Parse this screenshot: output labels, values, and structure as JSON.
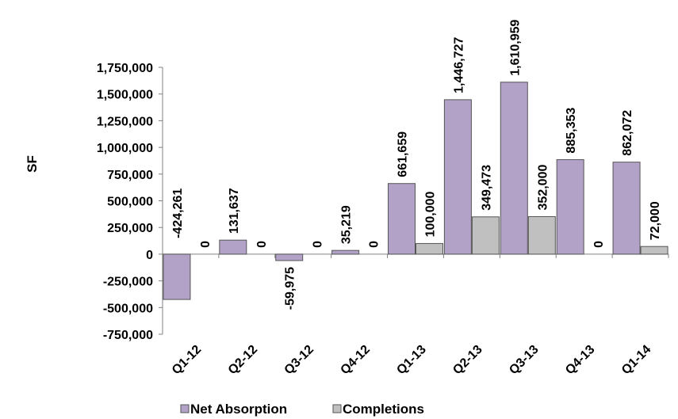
{
  "chart_data": {
    "type": "bar",
    "title": "",
    "xlabel": "",
    "ylabel": "SF",
    "categories": [
      "Q1-12",
      "Q2-12",
      "Q3-12",
      "Q4-12",
      "Q1-13",
      "Q2-13",
      "Q3-13",
      "Q4-13",
      "Q1-14"
    ],
    "series": [
      {
        "name": "Net Absorption",
        "color": "#b3a2c7",
        "values": [
          -424261,
          131637,
          -59975,
          35219,
          661659,
          1446727,
          1610959,
          885353,
          862072
        ],
        "labels": [
          "-424,261",
          "131,637",
          "-59,975",
          "35,219",
          "661,659",
          "1,446,727",
          "1,610,959",
          "885,353",
          "862,072"
        ]
      },
      {
        "name": "Completions",
        "color": "#c0c0c0",
        "values": [
          0,
          0,
          0,
          0,
          100000,
          349473,
          352000,
          0,
          72000
        ],
        "labels": [
          "0",
          "0",
          "0",
          "0",
          "100,000",
          "349,473",
          "352,000",
          "0",
          "72,000"
        ]
      }
    ],
    "ylim": [
      -750000,
      1750000
    ],
    "yticks": [
      1750000,
      1500000,
      1250000,
      1000000,
      750000,
      500000,
      250000,
      0,
      -250000,
      -500000,
      -750000
    ],
    "ytick_labels": [
      "1,750,000",
      "1,500,000",
      "1,250,000",
      "1,000,000",
      "750,000",
      "500,000",
      "250,000",
      "0",
      "-250,000",
      "-500,000",
      "-750,000"
    ],
    "grid": false,
    "legend_position": "bottom"
  }
}
